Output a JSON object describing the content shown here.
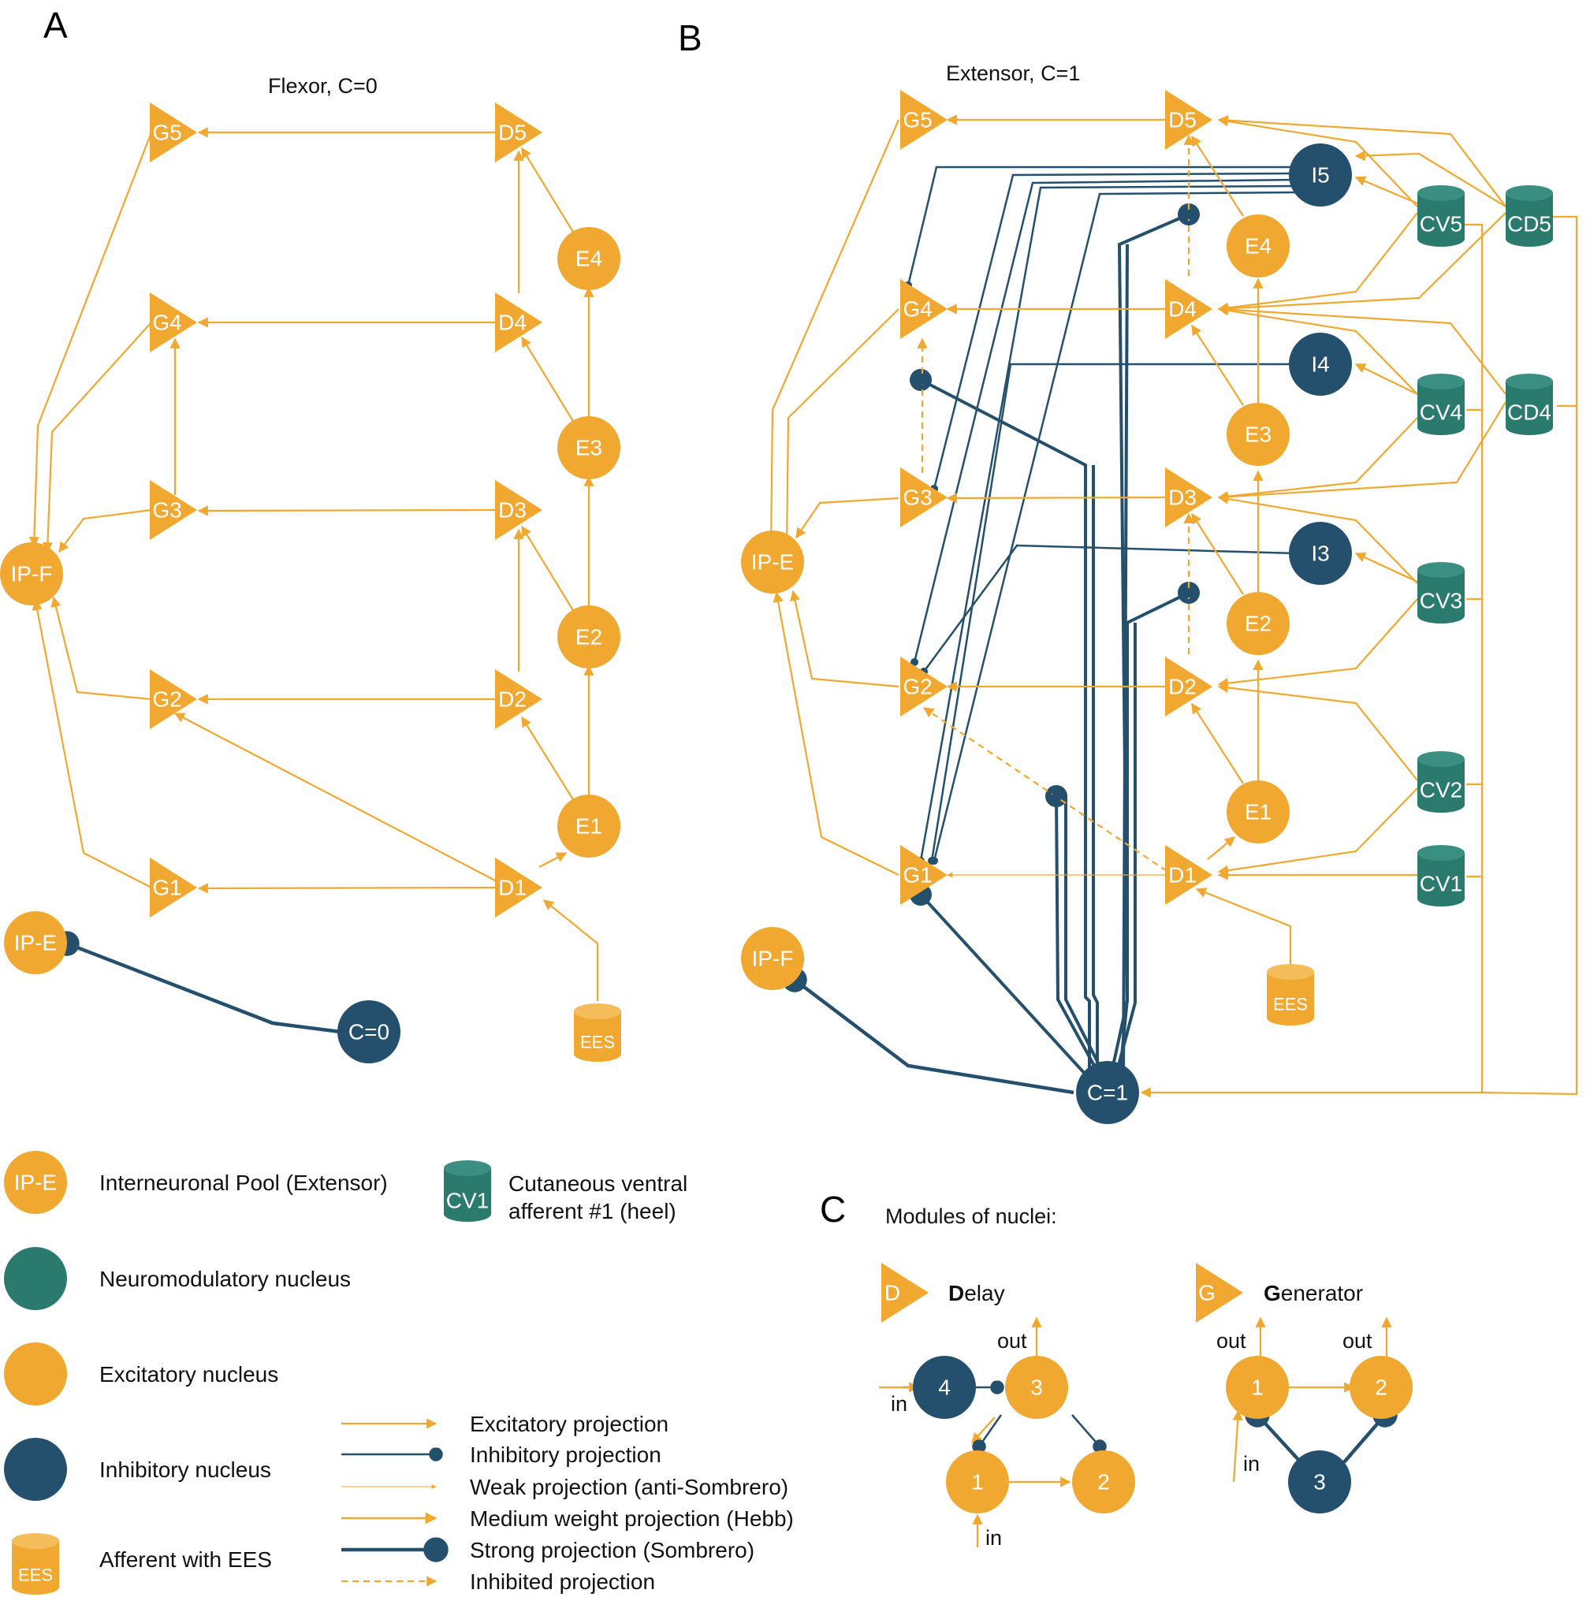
{
  "panels": {
    "a": {
      "letter": "A",
      "title": "Flexor, C=0"
    },
    "b": {
      "letter": "B",
      "title": "Extensor, C=1"
    },
    "c": {
      "letter": "C",
      "title": "Modules of nuclei:"
    }
  },
  "nodes": {
    "a_g1": "G1",
    "a_g2": "G2",
    "a_g3": "G3",
    "a_g4": "G4",
    "a_g5": "G5",
    "a_d1": "D1",
    "a_d2": "D2",
    "a_d3": "D3",
    "a_d4": "D4",
    "a_d5": "D5",
    "a_e1": "E1",
    "a_e2": "E2",
    "a_e3": "E3",
    "a_e4": "E4",
    "a_ipf": "IP-F",
    "a_ipe": "IP-E",
    "a_c0": "C=0",
    "a_ees": "EES",
    "b_g1": "G1",
    "b_g2": "G2",
    "b_g3": "G3",
    "b_g4": "G4",
    "b_g5": "G5",
    "b_d1": "D1",
    "b_d2": "D2",
    "b_d3": "D3",
    "b_d4": "D4",
    "b_d5": "D5",
    "b_e1": "E1",
    "b_e2": "E2",
    "b_e3": "E3",
    "b_e4": "E4",
    "b_i3": "I3",
    "b_i4": "I4",
    "b_i5": "I5",
    "b_cv1": "CV1",
    "b_cv2": "CV2",
    "b_cv3": "CV3",
    "b_cv4": "CV4",
    "b_cv5": "CV5",
    "b_cd4": "CD4",
    "b_cd5": "CD5",
    "b_ipe": "IP-E",
    "b_ipf": "IP-F",
    "b_c1": "C=1",
    "b_ees": "EES"
  },
  "legend": {
    "ipe_node": "IP-E",
    "ipe_text": "Interneuronal Pool (Extensor)",
    "cv1_node": "CV1",
    "cv1_text_1": "Cutaneous ventral",
    "cv1_text_2": "afferent #1 (heel)",
    "neuromod_text": "Neuromodulatory nucleus",
    "excitatory_text": "Excitatory nucleus",
    "inhibitory_text": "Inhibitory nucleus",
    "ees_node": "EES",
    "afferent_text": "Afferent with EES",
    "proj_excitatory": "Excitatory projection",
    "proj_inhibitory": "Inhibitory projection",
    "proj_weak": "Weak projection (anti-Sombrero)",
    "proj_medium": "Medium weight projection (Hebb)",
    "proj_strong": "Strong projection (Sombrero)",
    "proj_inhibited": "Inhibited projection"
  },
  "modules": {
    "delay": {
      "symbol": "D",
      "title_bold": "D",
      "title_rest": "elay",
      "n1": "1",
      "n2": "2",
      "n3": "3",
      "n4": "4",
      "out": "out",
      "in_left": "in",
      "in_bottom": "in"
    },
    "generator": {
      "symbol": "G",
      "title_bold": "G",
      "title_rest": "enerator",
      "n1": "1",
      "n2": "2",
      "n3": "3",
      "out1": "out",
      "out2": "out",
      "in": "in"
    }
  },
  "colors": {
    "excitatory": "#f0a830",
    "excitatory_line": "#f0a830",
    "inhibitory": "#24506e",
    "neuromodulatory": "#2a7a6e",
    "cv_body": "#2a7a6e"
  }
}
